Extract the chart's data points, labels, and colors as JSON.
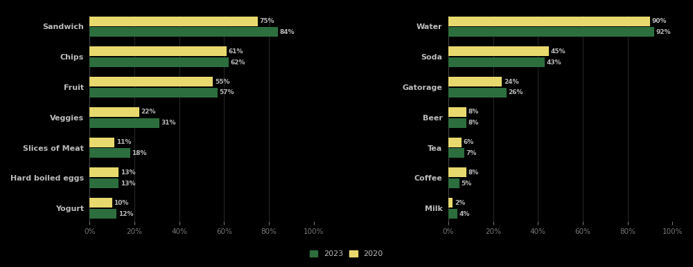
{
  "food_categories": [
    "Sandwich",
    "Chips",
    "Fruit",
    "Veggies",
    "Slices of Meat",
    "Hard boiled eggs",
    "Yogurt"
  ],
  "food_2023": [
    84,
    62,
    57,
    31,
    18,
    13,
    12
  ],
  "food_2020": [
    75,
    61,
    55,
    22,
    11,
    13,
    10
  ],
  "drink_categories": [
    "Water",
    "Soda",
    "Gatorage",
    "Beer",
    "Tea",
    "Coffee",
    "Milk"
  ],
  "drink_2023": [
    92,
    43,
    26,
    8,
    7,
    5,
    4
  ],
  "drink_2020": [
    90,
    45,
    24,
    8,
    6,
    8,
    2
  ],
  "color_2023": "#2d6e3e",
  "color_2020": "#e8d96e",
  "background": "#000000",
  "text_color": "#bbbbbb",
  "label_color": "#777777",
  "bar_height": 0.32,
  "bar_gap": 0.04,
  "legend_2023": "2023",
  "legend_2020": "2020",
  "food_xlim": 100,
  "drink_xlim": 100,
  "xtick_step": 20
}
